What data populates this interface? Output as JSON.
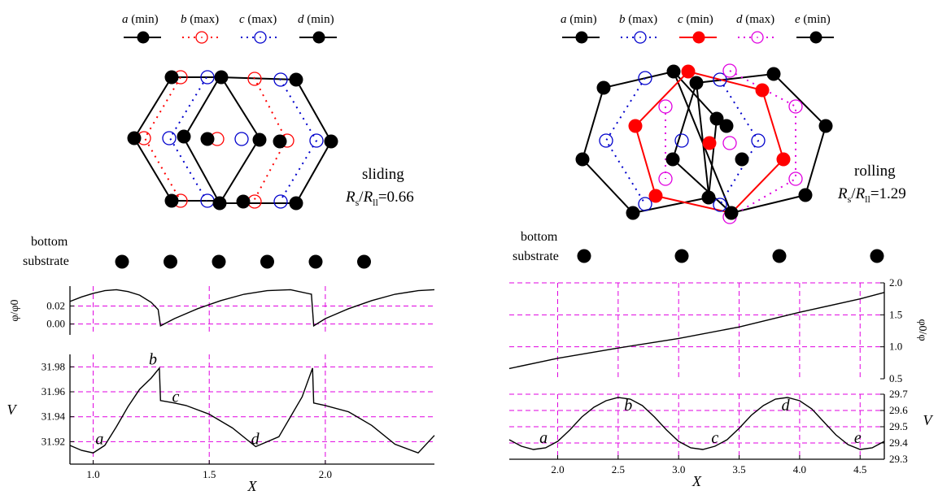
{
  "colors": {
    "black": "#000000",
    "red": "#ff0000",
    "blue": "#0000cc",
    "magenta": "#e000e0",
    "grid": "#e000e0"
  },
  "sliding": {
    "legend": [
      {
        "letter": "a",
        "tag": " (min)",
        "color": "#000000",
        "filled": true,
        "dotted": false
      },
      {
        "letter": "b",
        "tag": " (max)",
        "color": "#ff0000",
        "filled": false,
        "dotted": true
      },
      {
        "letter": "c",
        "tag": " (max)",
        "color": "#0000cc",
        "filled": false,
        "dotted": true
      },
      {
        "letter": "d",
        "tag": " (min)",
        "color": "#000000",
        "filled": true,
        "dotted": false
      }
    ],
    "regime": "sliding",
    "ratio_symbol": "R",
    "ratio_sub1": "s",
    "ratio_slash": "/",
    "ratio_sub2": "ll",
    "ratio_value": "=0.66",
    "bottom_label_1": "bottom",
    "bottom_label_2": "substrate",
    "substrate_count": 6
  },
  "rolling": {
    "legend": [
      {
        "letter": "a",
        "tag": " (min)",
        "color": "#000000",
        "filled": true,
        "dotted": false
      },
      {
        "letter": "b",
        "tag": " (max)",
        "color": "#0000cc",
        "filled": false,
        "dotted": true
      },
      {
        "letter": "c",
        "tag": " (min)",
        "color": "#ff0000",
        "filled": true,
        "dotted": false
      },
      {
        "letter": "d",
        "tag": " (max)",
        "color": "#e000e0",
        "filled": false,
        "dotted": true
      },
      {
        "letter": "e",
        "tag": " (min)",
        "color": "#000000",
        "filled": true,
        "dotted": false
      }
    ],
    "regime": "rolling",
    "ratio_symbol": "R",
    "ratio_sub1": "s",
    "ratio_slash": "/",
    "ratio_sub2": "ll",
    "ratio_value": "=1.29",
    "bottom_label_1": "bottom",
    "bottom_label_2": "substrate",
    "substrate_count": 4
  },
  "chart_data": [
    {
      "type": "line",
      "panel": "sliding-phi",
      "ylabel": "φ/φ0",
      "xlim": [
        0.9,
        2.47
      ],
      "ylim": [
        -0.012,
        0.042
      ],
      "yticks": [
        {
          "v": 0.0,
          "label": "0.00"
        },
        {
          "v": 0.02,
          "label": "0.02"
        }
      ],
      "x": [
        0.9,
        0.95,
        1.0,
        1.05,
        1.1,
        1.15,
        1.2,
        1.25,
        1.28,
        1.29,
        1.35,
        1.45,
        1.55,
        1.65,
        1.75,
        1.85,
        1.94,
        1.95,
        2.0,
        2.1,
        2.2,
        2.3,
        2.4,
        2.47
      ],
      "y": [
        0.025,
        0.03,
        0.034,
        0.037,
        0.038,
        0.036,
        0.032,
        0.024,
        0.016,
        -0.002,
        0.006,
        0.017,
        0.026,
        0.033,
        0.037,
        0.038,
        0.033,
        -0.002,
        0.006,
        0.017,
        0.026,
        0.033,
        0.037,
        0.038
      ],
      "grid": true
    },
    {
      "type": "line",
      "panel": "sliding-V",
      "xlabel": "X",
      "ylabel": "V",
      "xlim": [
        0.9,
        2.47
      ],
      "ylim": [
        31.902,
        31.99
      ],
      "xticks": [
        {
          "v": 1.0,
          "label": "1.0"
        },
        {
          "v": 1.5,
          "label": "1.5"
        },
        {
          "v": 2.0,
          "label": "2.0"
        }
      ],
      "yticks": [
        {
          "v": 31.92,
          "label": "31.92"
        },
        {
          "v": 31.94,
          "label": "31.94"
        },
        {
          "v": 31.96,
          "label": "31.96"
        },
        {
          "v": 31.98,
          "label": "31.98"
        }
      ],
      "x": [
        0.9,
        0.95,
        1.0,
        1.05,
        1.1,
        1.15,
        1.2,
        1.25,
        1.285,
        1.29,
        1.35,
        1.4,
        1.5,
        1.6,
        1.7,
        1.8,
        1.9,
        1.945,
        1.95,
        2.0,
        2.1,
        2.2,
        2.3,
        2.4,
        2.47
      ],
      "y": [
        31.917,
        31.913,
        31.911,
        31.917,
        31.932,
        31.948,
        31.962,
        31.971,
        31.979,
        31.953,
        31.951,
        31.949,
        31.942,
        31.931,
        31.916,
        31.924,
        31.956,
        31.979,
        31.951,
        31.949,
        31.944,
        31.933,
        31.918,
        31.911,
        31.925
      ],
      "annotations": [
        {
          "text": "a",
          "x": 1.01,
          "y": 31.918
        },
        {
          "text": "b",
          "x": 1.24,
          "y": 31.982
        },
        {
          "text": "c",
          "x": 1.34,
          "y": 31.952
        },
        {
          "text": "d",
          "x": 1.68,
          "y": 31.918
        }
      ],
      "grid": true
    },
    {
      "type": "line",
      "panel": "rolling-phi",
      "ylabel": "φ0/φ",
      "xlim": [
        1.6,
        4.7
      ],
      "ylim": [
        0.5,
        2.0
      ],
      "yticks": [
        {
          "v": 0.5,
          "label": "0.5"
        },
        {
          "v": 1.0,
          "label": "1.0"
        },
        {
          "v": 1.5,
          "label": "1.5"
        },
        {
          "v": 2.0,
          "label": "2.0"
        }
      ],
      "x": [
        1.6,
        2.0,
        2.5,
        3.0,
        3.5,
        4.0,
        4.5,
        4.7
      ],
      "y": [
        0.66,
        0.82,
        0.98,
        1.13,
        1.31,
        1.54,
        1.75,
        1.85
      ],
      "grid": true
    },
    {
      "type": "line",
      "panel": "rolling-V",
      "xlabel": "X",
      "ylabel": "V",
      "xlim": [
        1.6,
        4.7
      ],
      "ylim": [
        29.3,
        29.7
      ],
      "xticks": [
        {
          "v": 2.0,
          "label": "2.0"
        },
        {
          "v": 2.5,
          "label": "2.5"
        },
        {
          "v": 3.0,
          "label": "3.0"
        },
        {
          "v": 3.5,
          "label": "3.5"
        },
        {
          "v": 4.0,
          "label": "4.0"
        },
        {
          "v": 4.5,
          "label": "4.5"
        }
      ],
      "yticks": [
        {
          "v": 29.3,
          "label": "29.3"
        },
        {
          "v": 29.4,
          "label": "29.4"
        },
        {
          "v": 29.5,
          "label": "29.5"
        },
        {
          "v": 29.6,
          "label": "29.6"
        },
        {
          "v": 29.7,
          "label": "29.7"
        }
      ],
      "x": [
        1.6,
        1.7,
        1.8,
        1.9,
        2.0,
        2.1,
        2.2,
        2.3,
        2.4,
        2.5,
        2.6,
        2.7,
        2.8,
        2.9,
        3.0,
        3.1,
        3.2,
        3.3,
        3.4,
        3.5,
        3.6,
        3.7,
        3.8,
        3.9,
        4.0,
        4.1,
        4.2,
        4.3,
        4.4,
        4.5,
        4.6,
        4.7
      ],
      "y": [
        29.42,
        29.38,
        29.36,
        29.37,
        29.41,
        29.48,
        29.56,
        29.62,
        29.66,
        29.68,
        29.67,
        29.63,
        29.56,
        29.48,
        29.41,
        29.37,
        29.36,
        29.38,
        29.42,
        29.49,
        29.57,
        29.63,
        29.67,
        29.68,
        29.66,
        29.61,
        29.53,
        29.45,
        29.39,
        29.36,
        29.37,
        29.41
      ],
      "annotations": [
        {
          "text": "a",
          "x": 1.85,
          "y": 29.4
        },
        {
          "text": "b",
          "x": 2.55,
          "y": 29.6
        },
        {
          "text": "c",
          "x": 3.27,
          "y": 29.4
        },
        {
          "text": "d",
          "x": 3.85,
          "y": 29.6
        },
        {
          "text": "e",
          "x": 4.45,
          "y": 29.4
        }
      ],
      "grid": true
    }
  ]
}
